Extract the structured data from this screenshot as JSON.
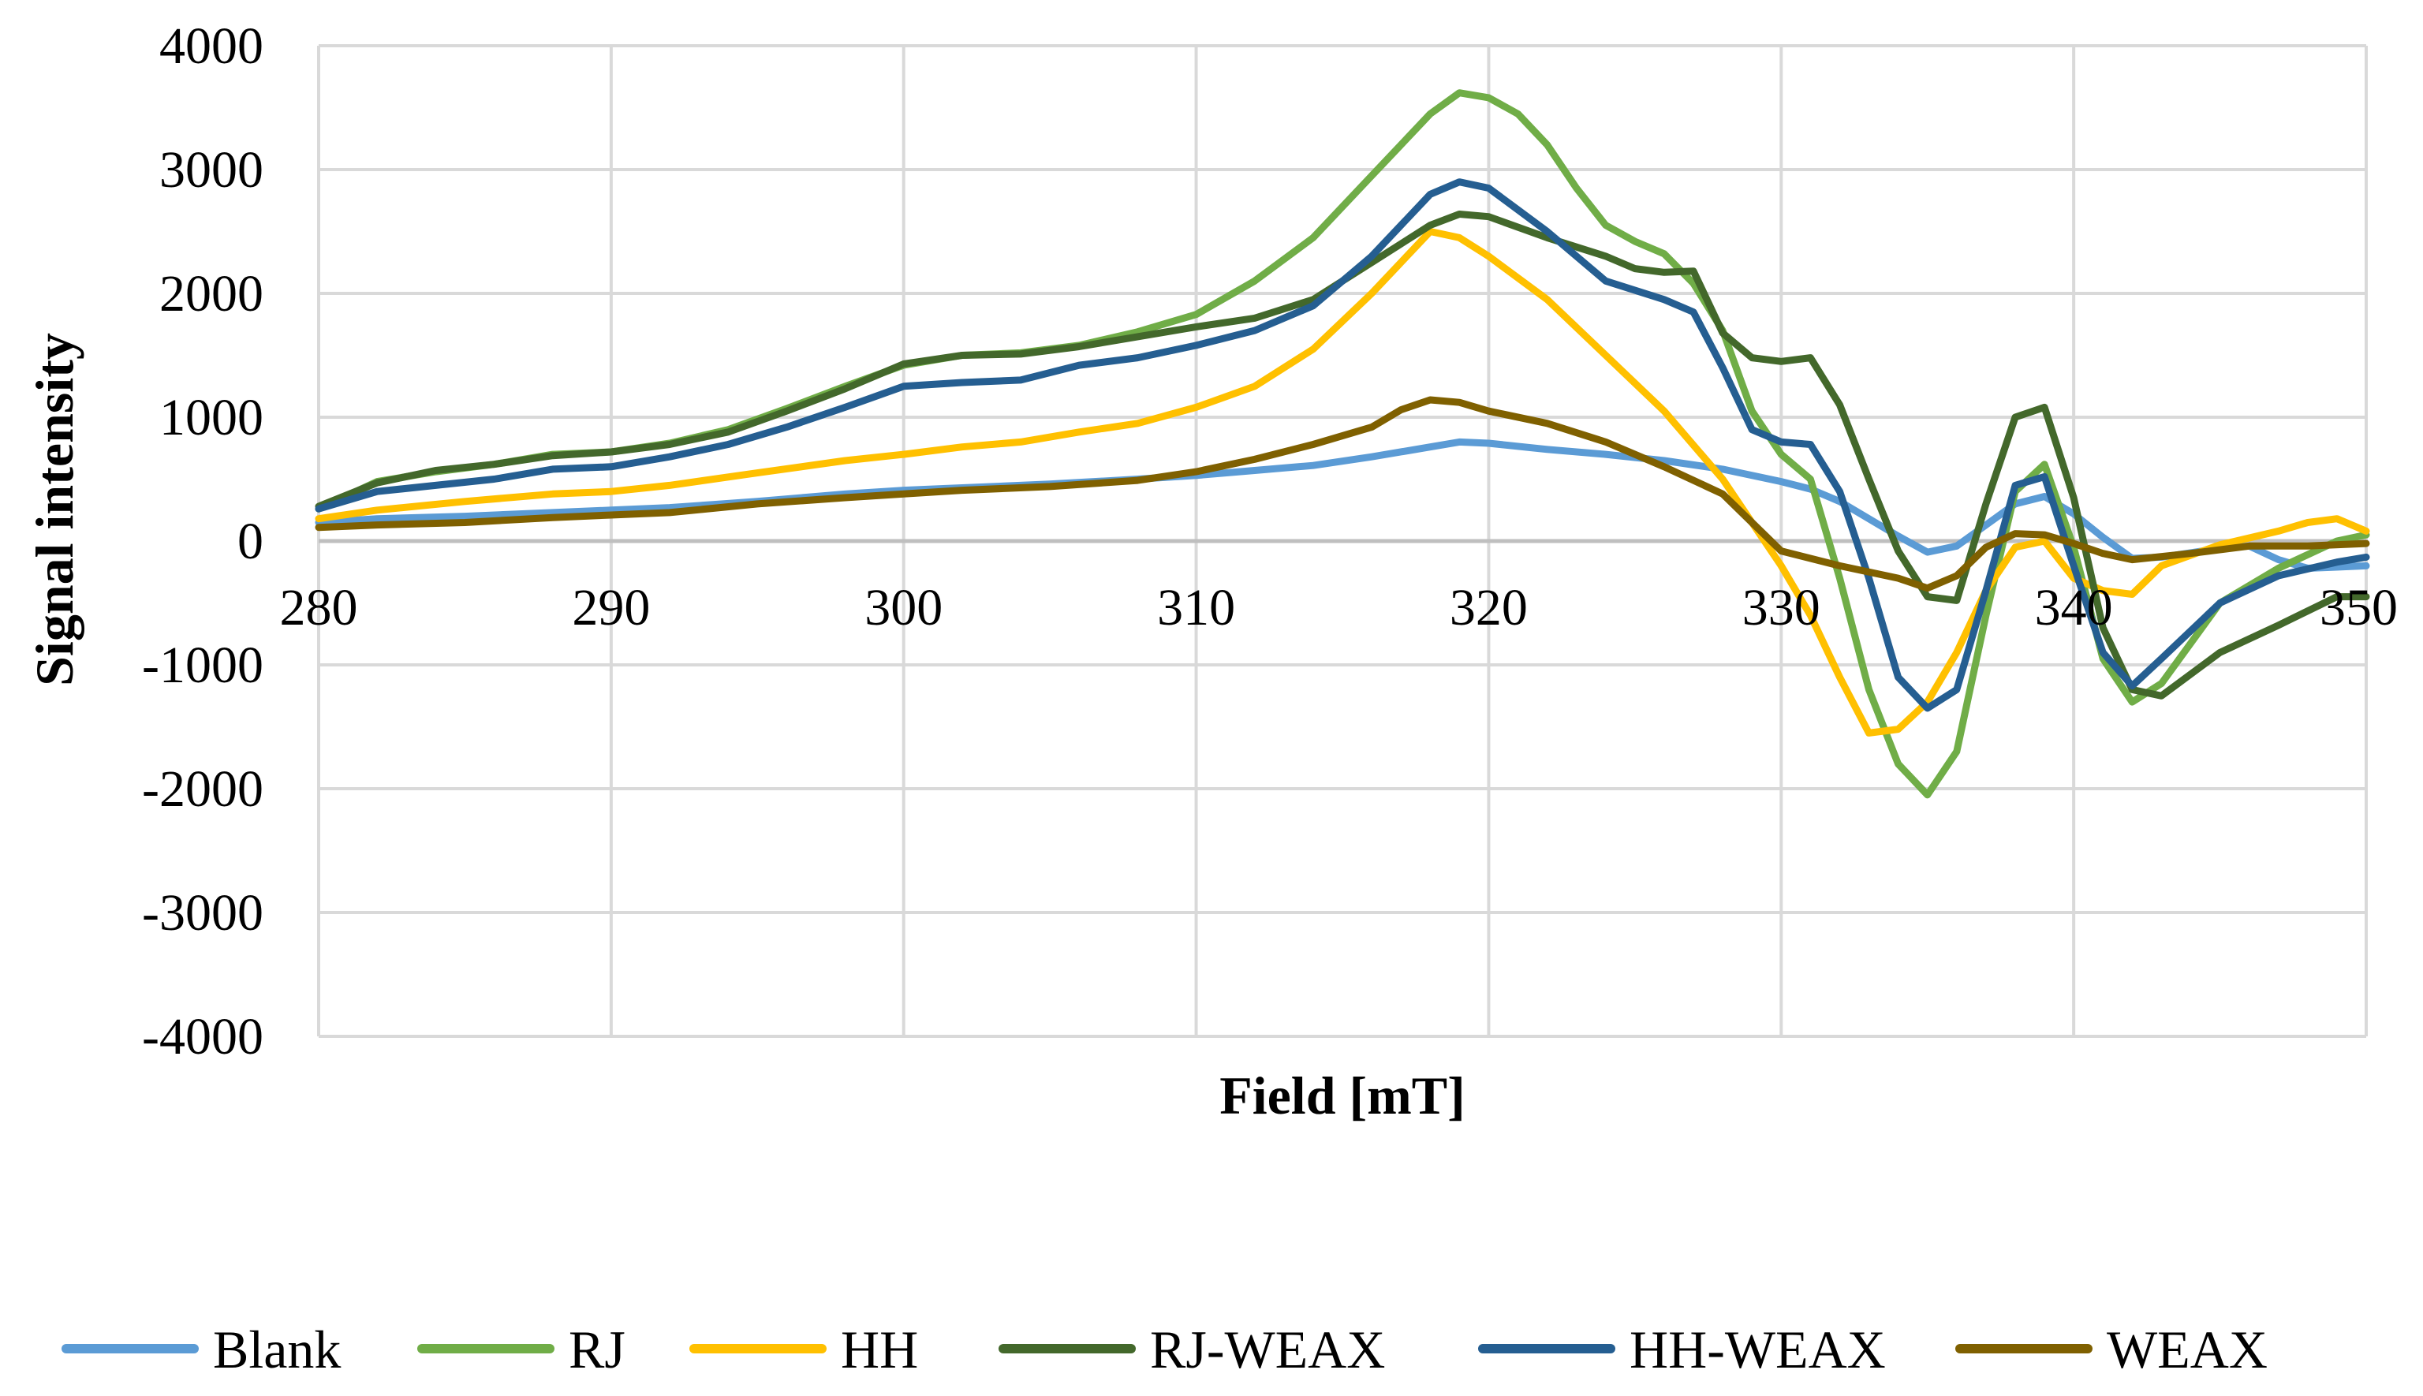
{
  "chart_data": {
    "type": "line",
    "title": "",
    "xlabel": "Field [mT]",
    "ylabel": "Signal intensity",
    "xlim": [
      280,
      350
    ],
    "ylim": [
      -4000,
      4000
    ],
    "xticks": [
      280,
      290,
      300,
      310,
      320,
      330,
      340,
      350
    ],
    "yticks": [
      4000,
      3000,
      2000,
      1000,
      0,
      -1000,
      -2000,
      -3000,
      -4000
    ],
    "x_tick_labels": [
      "280",
      "290",
      "300",
      "310",
      "320",
      "330",
      "340",
      "350"
    ],
    "y_tick_labels": [
      "4000",
      "3000",
      "2000",
      "1000",
      "0",
      "-1000",
      "-2000",
      "-3000",
      "-4000"
    ],
    "grid": true,
    "legend_position": "bottom",
    "series": [
      {
        "name": "Blank",
        "color": "#5b9bd5",
        "points": [
          [
            280,
            150
          ],
          [
            282,
            180
          ],
          [
            285,
            200
          ],
          [
            288,
            230
          ],
          [
            290,
            250
          ],
          [
            292,
            270
          ],
          [
            295,
            320
          ],
          [
            298,
            380
          ],
          [
            300,
            410
          ],
          [
            302,
            430
          ],
          [
            305,
            460
          ],
          [
            308,
            500
          ],
          [
            310,
            530
          ],
          [
            312,
            570
          ],
          [
            314,
            610
          ],
          [
            316,
            680
          ],
          [
            318,
            760
          ],
          [
            319,
            800
          ],
          [
            320,
            790
          ],
          [
            322,
            740
          ],
          [
            324,
            700
          ],
          [
            326,
            650
          ],
          [
            328,
            580
          ],
          [
            330,
            480
          ],
          [
            331,
            420
          ],
          [
            332,
            320
          ],
          [
            333,
            180
          ],
          [
            334,
            40
          ],
          [
            335,
            -90
          ],
          [
            336,
            -40
          ],
          [
            337,
            130
          ],
          [
            338,
            300
          ],
          [
            339,
            360
          ],
          [
            340,
            220
          ],
          [
            341,
            30
          ],
          [
            342,
            -140
          ],
          [
            343,
            -130
          ],
          [
            345,
            -60
          ],
          [
            346,
            -40
          ],
          [
            347,
            -150
          ],
          [
            348,
            -220
          ],
          [
            349,
            -210
          ],
          [
            350,
            -200
          ]
        ]
      },
      {
        "name": "RJ",
        "color": "#70ad47",
        "points": [
          [
            280,
            260
          ],
          [
            282,
            480
          ],
          [
            284,
            560
          ],
          [
            286,
            620
          ],
          [
            288,
            700
          ],
          [
            290,
            720
          ],
          [
            292,
            790
          ],
          [
            294,
            900
          ],
          [
            296,
            1070
          ],
          [
            298,
            1250
          ],
          [
            300,
            1420
          ],
          [
            302,
            1500
          ],
          [
            304,
            1520
          ],
          [
            306,
            1580
          ],
          [
            308,
            1690
          ],
          [
            310,
            1830
          ],
          [
            312,
            2100
          ],
          [
            314,
            2450
          ],
          [
            316,
            2950
          ],
          [
            318,
            3450
          ],
          [
            319,
            3620
          ],
          [
            320,
            3580
          ],
          [
            321,
            3450
          ],
          [
            322,
            3200
          ],
          [
            323,
            2850
          ],
          [
            324,
            2550
          ],
          [
            325,
            2420
          ],
          [
            326,
            2320
          ],
          [
            327,
            2080
          ],
          [
            328,
            1700
          ],
          [
            329,
            1050
          ],
          [
            330,
            700
          ],
          [
            331,
            500
          ],
          [
            332,
            -300
          ],
          [
            333,
            -1200
          ],
          [
            334,
            -1800
          ],
          [
            335,
            -2050
          ],
          [
            336,
            -1700
          ],
          [
            337,
            -600
          ],
          [
            338,
            400
          ],
          [
            339,
            620
          ],
          [
            340,
            -50
          ],
          [
            341,
            -950
          ],
          [
            342,
            -1300
          ],
          [
            343,
            -1150
          ],
          [
            345,
            -500
          ],
          [
            347,
            -220
          ],
          [
            349,
            0
          ],
          [
            350,
            50
          ]
        ]
      },
      {
        "name": "HH",
        "color": "#ffc000",
        "points": [
          [
            280,
            180
          ],
          [
            282,
            250
          ],
          [
            285,
            320
          ],
          [
            288,
            380
          ],
          [
            290,
            400
          ],
          [
            292,
            450
          ],
          [
            295,
            550
          ],
          [
            298,
            650
          ],
          [
            300,
            700
          ],
          [
            302,
            760
          ],
          [
            304,
            800
          ],
          [
            306,
            880
          ],
          [
            308,
            950
          ],
          [
            310,
            1080
          ],
          [
            312,
            1250
          ],
          [
            314,
            1550
          ],
          [
            316,
            2000
          ],
          [
            318,
            2500
          ],
          [
            319,
            2450
          ],
          [
            320,
            2300
          ],
          [
            322,
            1950
          ],
          [
            324,
            1500
          ],
          [
            326,
            1050
          ],
          [
            328,
            500
          ],
          [
            329,
            150
          ],
          [
            330,
            -200
          ],
          [
            331,
            -600
          ],
          [
            332,
            -1100
          ],
          [
            333,
            -1550
          ],
          [
            334,
            -1520
          ],
          [
            335,
            -1300
          ],
          [
            336,
            -900
          ],
          [
            337,
            -400
          ],
          [
            338,
            -50
          ],
          [
            339,
            0
          ],
          [
            340,
            -300
          ],
          [
            341,
            -400
          ],
          [
            342,
            -430
          ],
          [
            343,
            -200
          ],
          [
            345,
            -30
          ],
          [
            347,
            80
          ],
          [
            348,
            150
          ],
          [
            349,
            180
          ],
          [
            350,
            80
          ]
        ]
      },
      {
        "name": "RJ-WEAX",
        "color": "#43682b",
        "points": [
          [
            280,
            280
          ],
          [
            282,
            470
          ],
          [
            284,
            570
          ],
          [
            286,
            620
          ],
          [
            288,
            690
          ],
          [
            290,
            720
          ],
          [
            292,
            780
          ],
          [
            294,
            880
          ],
          [
            296,
            1050
          ],
          [
            298,
            1230
          ],
          [
            300,
            1430
          ],
          [
            302,
            1500
          ],
          [
            304,
            1510
          ],
          [
            306,
            1570
          ],
          [
            308,
            1650
          ],
          [
            310,
            1730
          ],
          [
            312,
            1800
          ],
          [
            314,
            1950
          ],
          [
            316,
            2250
          ],
          [
            318,
            2550
          ],
          [
            319,
            2640
          ],
          [
            320,
            2620
          ],
          [
            322,
            2450
          ],
          [
            324,
            2300
          ],
          [
            325,
            2200
          ],
          [
            326,
            2170
          ],
          [
            327,
            2180
          ],
          [
            328,
            1680
          ],
          [
            329,
            1480
          ],
          [
            330,
            1450
          ],
          [
            331,
            1480
          ],
          [
            332,
            1100
          ],
          [
            333,
            500
          ],
          [
            334,
            -80
          ],
          [
            335,
            -450
          ],
          [
            336,
            -480
          ],
          [
            337,
            300
          ],
          [
            338,
            1000
          ],
          [
            339,
            1080
          ],
          [
            340,
            350
          ],
          [
            341,
            -700
          ],
          [
            342,
            -1200
          ],
          [
            343,
            -1250
          ],
          [
            345,
            -900
          ],
          [
            347,
            -680
          ],
          [
            349,
            -450
          ],
          [
            350,
            -450
          ]
        ]
      },
      {
        "name": "HH-WEAX",
        "color": "#255e91",
        "points": [
          [
            280,
            260
          ],
          [
            282,
            400
          ],
          [
            284,
            450
          ],
          [
            286,
            500
          ],
          [
            288,
            580
          ],
          [
            290,
            600
          ],
          [
            292,
            680
          ],
          [
            294,
            780
          ],
          [
            296,
            920
          ],
          [
            298,
            1080
          ],
          [
            300,
            1250
          ],
          [
            302,
            1280
          ],
          [
            304,
            1300
          ],
          [
            306,
            1420
          ],
          [
            308,
            1480
          ],
          [
            310,
            1580
          ],
          [
            312,
            1700
          ],
          [
            314,
            1900
          ],
          [
            316,
            2300
          ],
          [
            318,
            2800
          ],
          [
            319,
            2900
          ],
          [
            320,
            2850
          ],
          [
            322,
            2500
          ],
          [
            324,
            2100
          ],
          [
            326,
            1950
          ],
          [
            327,
            1850
          ],
          [
            328,
            1400
          ],
          [
            329,
            900
          ],
          [
            330,
            800
          ],
          [
            331,
            780
          ],
          [
            332,
            400
          ],
          [
            333,
            -300
          ],
          [
            334,
            -1100
          ],
          [
            335,
            -1350
          ],
          [
            336,
            -1200
          ],
          [
            337,
            -400
          ],
          [
            338,
            450
          ],
          [
            339,
            520
          ],
          [
            340,
            -200
          ],
          [
            341,
            -900
          ],
          [
            342,
            -1170
          ],
          [
            343,
            -950
          ],
          [
            345,
            -500
          ],
          [
            347,
            -280
          ],
          [
            349,
            -170
          ],
          [
            350,
            -130
          ]
        ]
      },
      {
        "name": "WEAX",
        "color": "#7f6000",
        "points": [
          [
            280,
            110
          ],
          [
            282,
            130
          ],
          [
            285,
            150
          ],
          [
            288,
            190
          ],
          [
            290,
            210
          ],
          [
            292,
            230
          ],
          [
            295,
            300
          ],
          [
            298,
            350
          ],
          [
            300,
            380
          ],
          [
            302,
            410
          ],
          [
            305,
            440
          ],
          [
            308,
            490
          ],
          [
            310,
            560
          ],
          [
            312,
            660
          ],
          [
            314,
            780
          ],
          [
            316,
            920
          ],
          [
            317,
            1060
          ],
          [
            318,
            1140
          ],
          [
            319,
            1120
          ],
          [
            320,
            1050
          ],
          [
            322,
            950
          ],
          [
            324,
            800
          ],
          [
            326,
            600
          ],
          [
            328,
            380
          ],
          [
            329,
            150
          ],
          [
            330,
            -80
          ],
          [
            332,
            -200
          ],
          [
            334,
            -300
          ],
          [
            335,
            -380
          ],
          [
            336,
            -280
          ],
          [
            337,
            -50
          ],
          [
            338,
            60
          ],
          [
            339,
            50
          ],
          [
            340,
            -20
          ],
          [
            341,
            -100
          ],
          [
            342,
            -150
          ],
          [
            344,
            -100
          ],
          [
            346,
            -40
          ],
          [
            348,
            -40
          ],
          [
            350,
            -20
          ]
        ]
      }
    ]
  }
}
